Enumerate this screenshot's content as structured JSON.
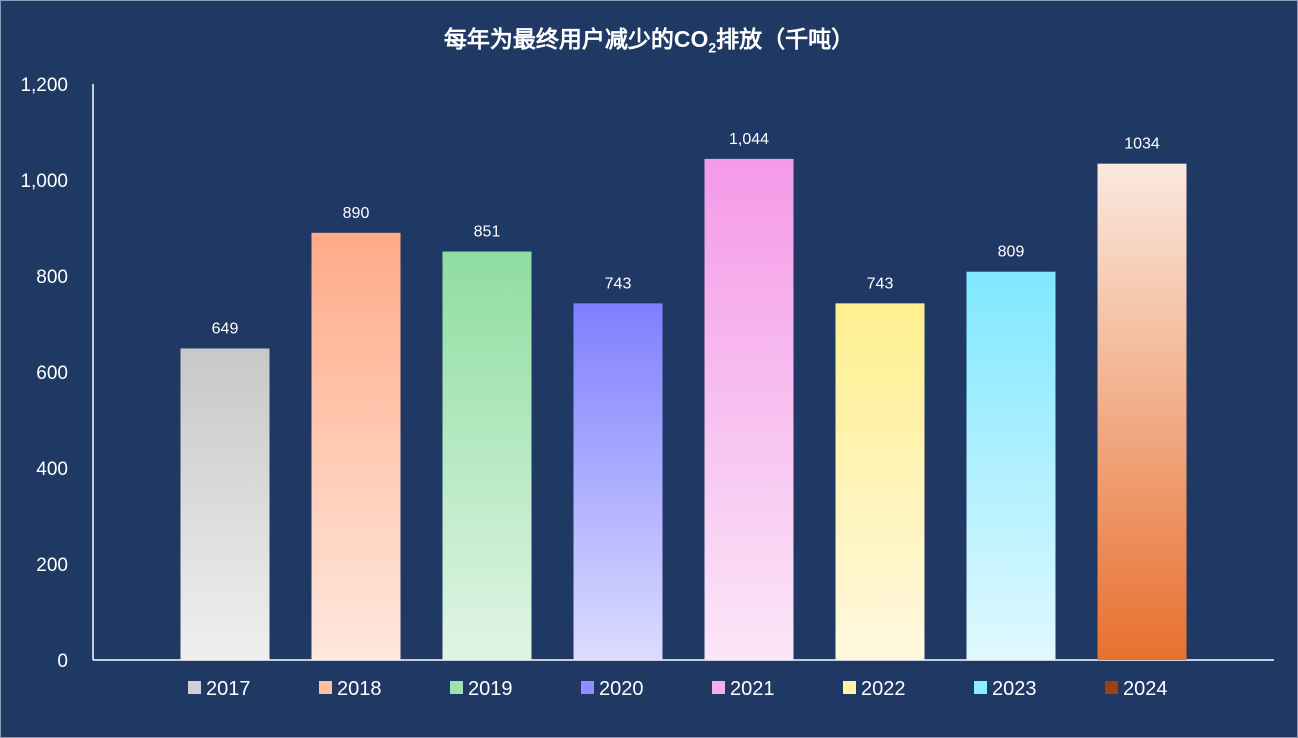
{
  "chart_data": {
    "type": "bar",
    "title_main": "每年为最终用户减少的CO",
    "title_sub": "2",
    "title_tail": "排放（千吨）",
    "categories": [
      "2017",
      "2018",
      "2019",
      "2020",
      "2021",
      "2022",
      "2023",
      "2024"
    ],
    "values": [
      649,
      890,
      851,
      743,
      1044,
      743,
      809,
      1034
    ],
    "data_labels": [
      "649",
      "890",
      "851",
      "743",
      "1,044",
      "743",
      "809",
      "1034"
    ],
    "ylim": [
      0,
      1200
    ],
    "yticks": [
      0,
      200,
      400,
      600,
      800,
      1000,
      1200
    ],
    "ytick_labels": [
      "0",
      "200",
      "400",
      "600",
      "800",
      "1,000",
      "1,200"
    ],
    "xlabel": "",
    "ylabel": "",
    "grid": false,
    "legend_position": "bottom",
    "colors": [
      [
        "#c8c8c8",
        "#efefef"
      ],
      [
        "#ffaa88",
        "#ffe8dd"
      ],
      [
        "#8fdda0",
        "#e0f5e5"
      ],
      [
        "#7f7fff",
        "#dcdcff"
      ],
      [
        "#f49ae8",
        "#fbe6f8"
      ],
      [
        "#fff08f",
        "#fff8e0"
      ],
      [
        "#7fe8ff",
        "#e0f8ff"
      ],
      [
        "#fbe9df",
        "#e8702f"
      ]
    ],
    "legend_colors": [
      "#d0d0d0",
      "#ffbfa0",
      "#a0e0b0",
      "#8f8fff",
      "#f5b0ec",
      "#fff3a8",
      "#90ecff",
      "#a0400f"
    ]
  }
}
